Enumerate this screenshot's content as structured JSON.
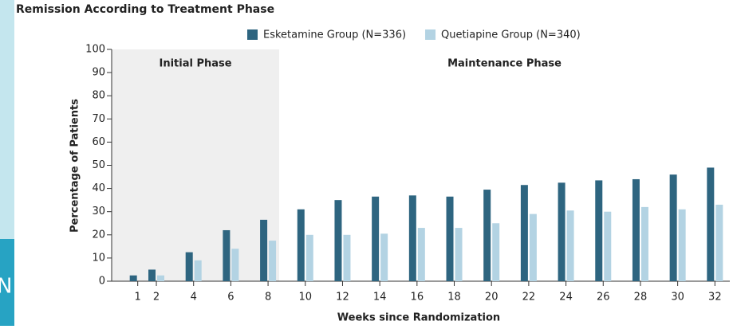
{
  "logo_fragment": "N",
  "chart_data": {
    "type": "bar",
    "title": "Remission According to Treatment Phase",
    "x_label": "Weeks since Randomization",
    "y_label": "Percentage of Patients",
    "x": [
      1,
      2,
      4,
      6,
      8,
      10,
      12,
      14,
      16,
      18,
      20,
      22,
      24,
      26,
      28,
      30,
      32
    ],
    "series": [
      {
        "name": "Esketamine Group (N=336)",
        "color": "#2e6580",
        "values": [
          2.5,
          5,
          12.5,
          22,
          26.5,
          31,
          35,
          36.5,
          37,
          36.5,
          39.5,
          41.5,
          42.5,
          43.5,
          44,
          46,
          49
        ]
      },
      {
        "name": "Quetiapine Group (N=340)",
        "color": "#b3d3e3",
        "values": [
          null,
          2.5,
          9,
          14,
          17.5,
          20,
          20,
          20.5,
          23,
          23,
          25,
          29,
          30.5,
          30,
          32,
          31,
          33
        ]
      }
    ],
    "xlim": [
      -0.4,
      32.8
    ],
    "xticks": [
      1,
      2,
      4,
      6,
      8,
      10,
      12,
      14,
      16,
      18,
      20,
      22,
      24,
      26,
      28,
      30,
      32
    ],
    "ylim": [
      0,
      100
    ],
    "yticks": [
      0,
      10,
      20,
      30,
      40,
      50,
      60,
      70,
      80,
      90,
      100
    ],
    "legend": "top",
    "phases": [
      {
        "label": "Initial Phase",
        "x": [
          -0.4,
          8.6
        ],
        "color": "#efefef"
      },
      {
        "label": "Maintenance Phase",
        "x": [
          8.6,
          32.8
        ],
        "color": "#ffffff"
      }
    ]
  }
}
